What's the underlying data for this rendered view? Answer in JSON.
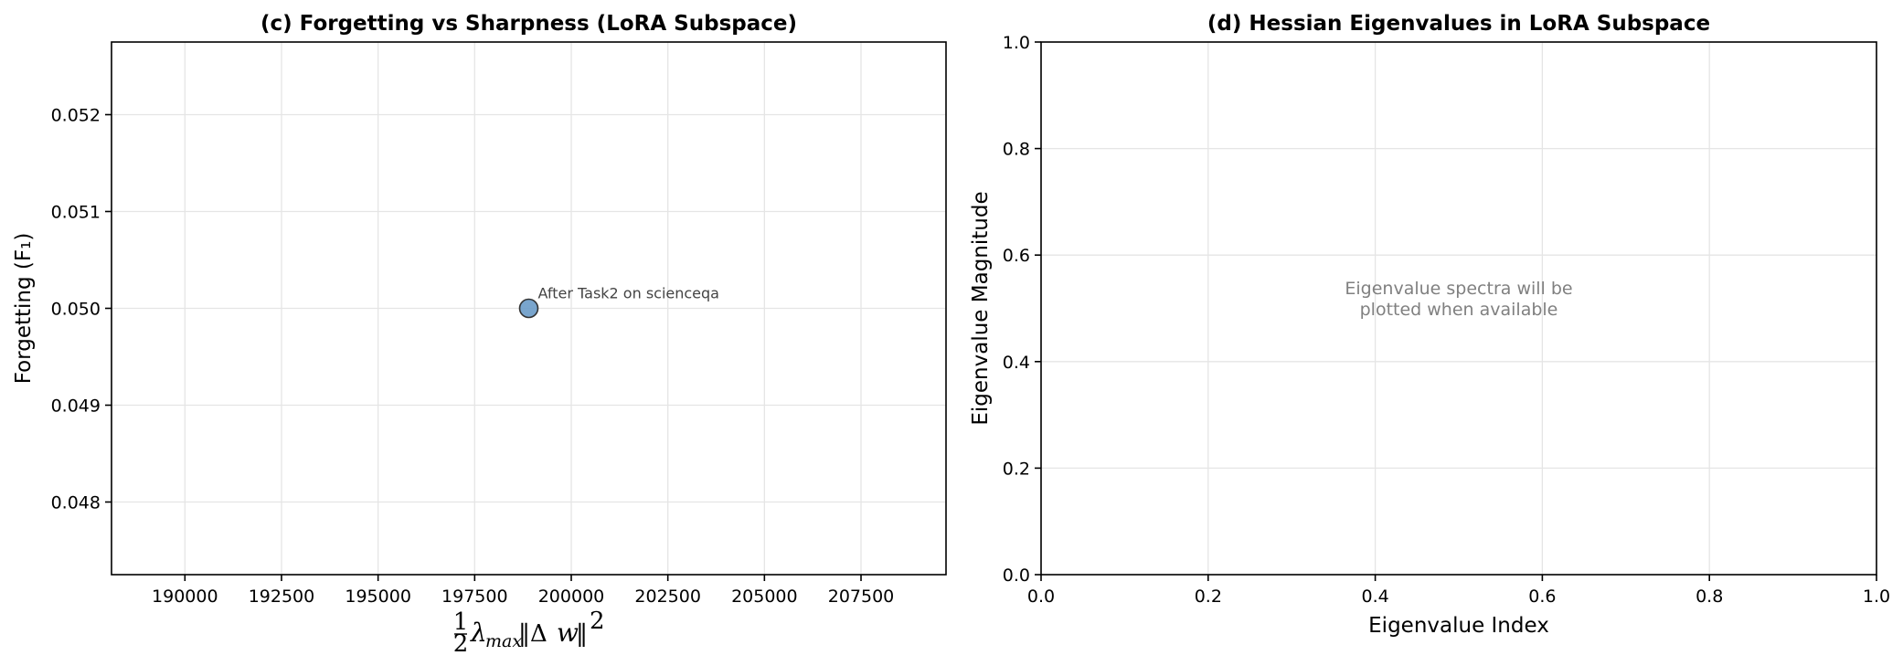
{
  "chart_data": [
    {
      "type": "scatter",
      "title": "(c) Forgetting vs Sharpness (LoRA Subspace)",
      "xlabel": "½λmax‖Δw‖²",
      "ylabel": "Forgetting (F₁)",
      "xlim": [
        188100,
        209700
      ],
      "ylim": [
        0.04725,
        0.05275
      ],
      "xticks": [
        190000,
        192500,
        195000,
        197500,
        200000,
        202500,
        205000,
        207500
      ],
      "yticks": [
        0.048,
        0.049,
        0.05,
        0.051,
        0.052
      ],
      "grid": true,
      "points": [
        {
          "x": 198900,
          "y": 0.05,
          "label": "After Task2 on scienceqa",
          "color": "#6a9bc8"
        }
      ]
    },
    {
      "type": "line",
      "title": "(d) Hessian Eigenvalues in LoRA Subspace",
      "xlabel": "Eigenvalue Index",
      "ylabel": "Eigenvalue Magnitude",
      "xlim": [
        0.0,
        1.0
      ],
      "ylim": [
        0.0,
        1.0
      ],
      "xticks": [
        0.0,
        0.2,
        0.4,
        0.6,
        0.8,
        1.0
      ],
      "yticks": [
        0.0,
        0.2,
        0.4,
        0.6,
        0.8,
        1.0
      ],
      "grid": true,
      "series": [],
      "annotation": "Eigenvalue spectra will be\nplotted when available"
    }
  ]
}
